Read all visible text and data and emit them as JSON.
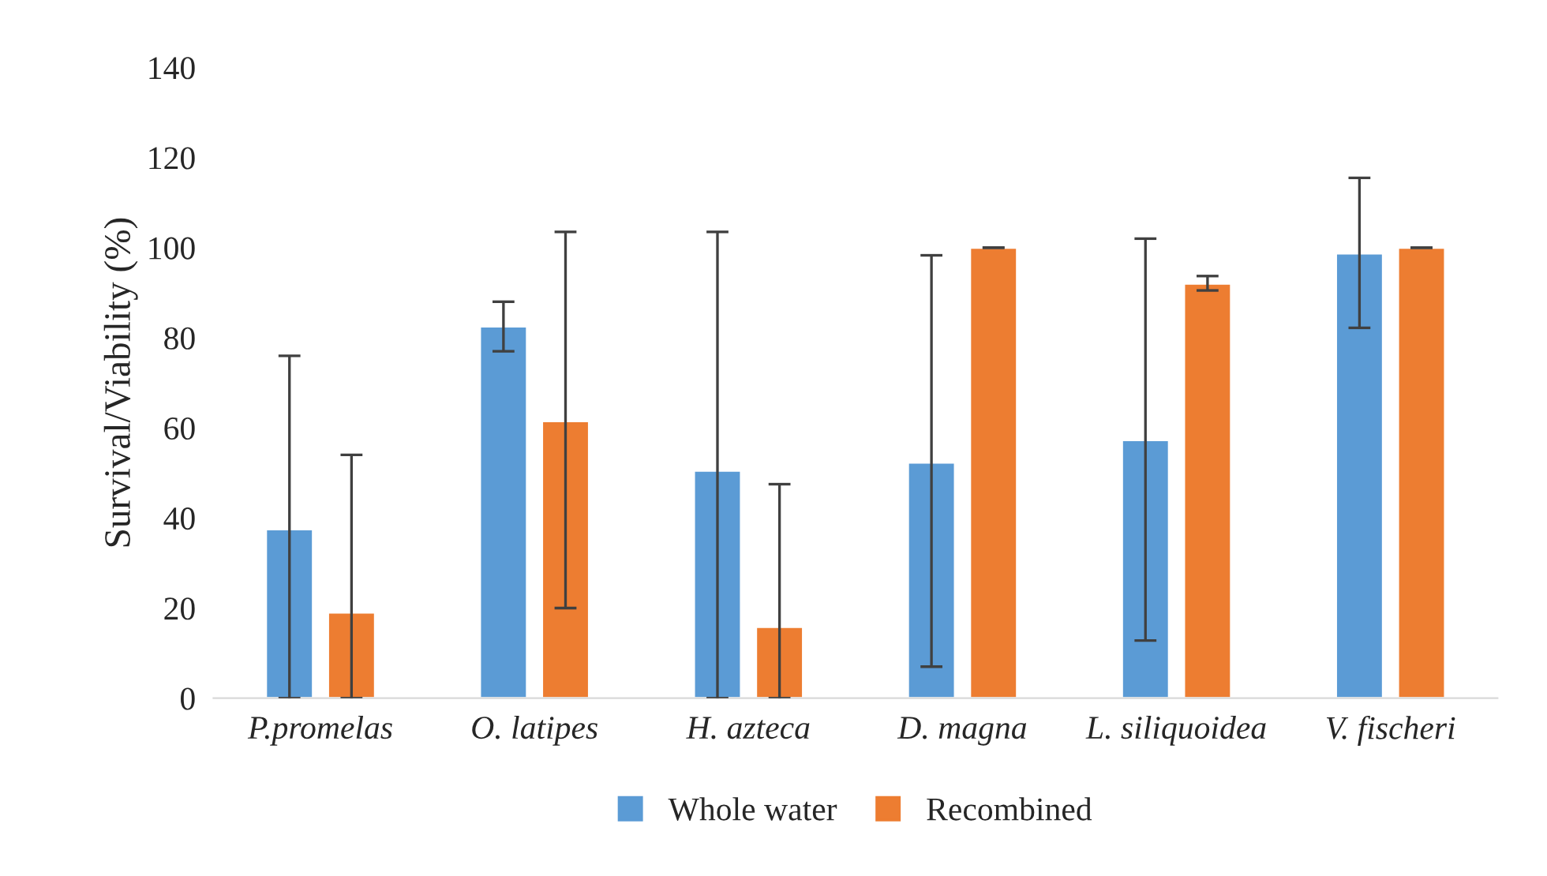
{
  "chart_data": {
    "type": "bar",
    "ylabel": "Survival/Viability (%)",
    "categories": [
      "P.promelas",
      "O. latipes",
      "H. azteca",
      "D. magna",
      "L. siliquoidea",
      "V. fischeri"
    ],
    "series": [
      {
        "name": "Whole water",
        "color": "#5b9bd5",
        "values": [
          37.5,
          82.5,
          50.5,
          52.3,
          57.3,
          98.7
        ],
        "errors": [
          [
            0,
            76
          ],
          [
            77,
            88
          ],
          [
            0,
            103.5
          ],
          [
            7,
            98.3
          ],
          [
            12.8,
            102
          ],
          [
            82.2,
            115.5
          ]
        ]
      },
      {
        "name": "Recombined",
        "color": "#ed7d31",
        "values": [
          19,
          61.5,
          15.8,
          100,
          92,
          100
        ],
        "errors": [
          [
            0,
            54
          ],
          [
            20,
            103.5
          ],
          [
            0,
            47.5
          ],
          [
            100,
            100
          ],
          [
            90.5,
            93.7
          ],
          [
            100,
            100
          ]
        ]
      }
    ],
    "ylim": [
      0,
      140
    ],
    "yticks": [
      0,
      20,
      40,
      60,
      80,
      100,
      120,
      140
    ],
    "grid": false,
    "legend": "bottom"
  }
}
